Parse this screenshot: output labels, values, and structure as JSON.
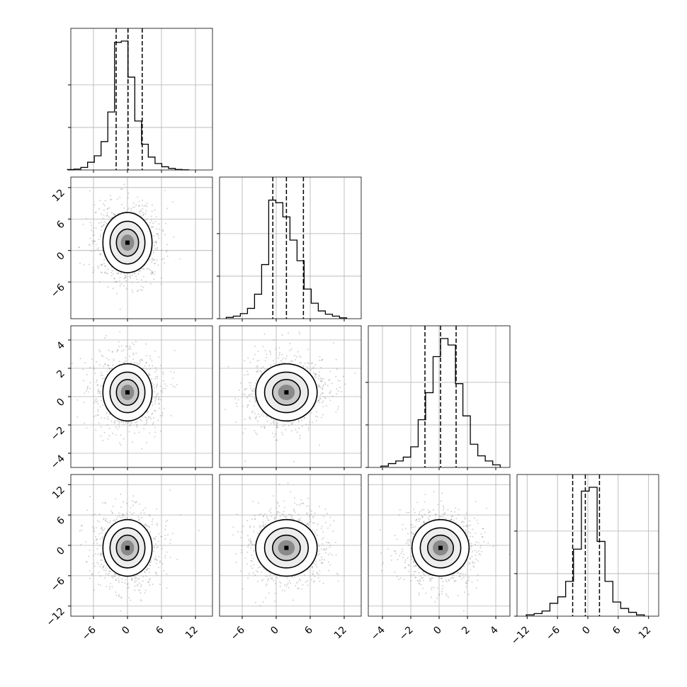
{
  "chart_data": {
    "type": "corner",
    "dimensions": 4,
    "quantile_lines": "dashed",
    "grid": true,
    "histograms": [
      {
        "index": 0,
        "xlim": [
          -10,
          15
        ],
        "counts": [
          0.003,
          0.007,
          0.02,
          0.06,
          0.11,
          0.22,
          0.45,
          0.99,
          1.0,
          0.72,
          0.38,
          0.2,
          0.1,
          0.05,
          0.025,
          0.012,
          0.004,
          0.001
        ],
        "quantiles": [
          -2.0,
          0.1,
          2.6
        ]
      },
      {
        "index": 1,
        "xlim": [
          -10,
          15
        ],
        "counts": [
          0.01,
          0.02,
          0.04,
          0.08,
          0.19,
          0.42,
          0.92,
          0.9,
          0.79,
          0.61,
          0.45,
          0.23,
          0.12,
          0.06,
          0.035,
          0.02,
          0.007
        ],
        "quantiles": [
          -0.6,
          1.8,
          4.8
        ]
      },
      {
        "index": 2,
        "xlim": [
          -5,
          5
        ],
        "counts": [
          0.01,
          0.03,
          0.05,
          0.08,
          0.16,
          0.37,
          0.58,
          0.86,
          1.0,
          0.95,
          0.65,
          0.4,
          0.18,
          0.09,
          0.05,
          0.02
        ],
        "quantiles": [
          -1.0,
          0.1,
          1.2
        ]
      },
      {
        "index": 3,
        "xlim": [
          -14,
          14
        ],
        "counts": [
          0.01,
          0.02,
          0.04,
          0.1,
          0.15,
          0.27,
          0.52,
          0.97,
          1.0,
          0.58,
          0.27,
          0.11,
          0.06,
          0.03,
          0.01
        ],
        "quantiles": [
          -3.0,
          -0.5,
          2.3
        ]
      }
    ],
    "scatter_panels": [
      {
        "row": 1,
        "col": 0,
        "xlim": [
          -10,
          15
        ],
        "ylim": [
          -13,
          14
        ],
        "mean": [
          0,
          1.5
        ],
        "sd": [
          2.8,
          3.7
        ]
      },
      {
        "row": 2,
        "col": 0,
        "xlim": [
          -10,
          15
        ],
        "ylim": [
          -5,
          5
        ],
        "mean": [
          0,
          0.3
        ],
        "sd": [
          2.8,
          1.3
        ]
      },
      {
        "row": 2,
        "col": 1,
        "xlim": [
          -10,
          15
        ],
        "ylim": [
          -5,
          5
        ],
        "mean": [
          1.8,
          0.3
        ],
        "sd": [
          3.5,
          1.3
        ]
      },
      {
        "row": 3,
        "col": 0,
        "xlim": [
          -10,
          15
        ],
        "ylim": [
          -14,
          14
        ],
        "mean": [
          0,
          -0.5
        ],
        "sd": [
          2.8,
          3.6
        ]
      },
      {
        "row": 3,
        "col": 1,
        "xlim": [
          -10,
          15
        ],
        "ylim": [
          -14,
          14
        ],
        "mean": [
          1.8,
          -0.5
        ],
        "sd": [
          3.5,
          3.6
        ]
      },
      {
        "row": 3,
        "col": 2,
        "xlim": [
          -5,
          5
        ],
        "ylim": [
          -14,
          14
        ],
        "mean": [
          0.1,
          -0.5
        ],
        "sd": [
          1.3,
          3.6
        ]
      }
    ],
    "ticks": {
      "x_var0": [
        "−6",
        "0",
        "6",
        "12"
      ],
      "x_var1": [
        "−6",
        "0",
        "6",
        "12"
      ],
      "x_var2": [
        "−4",
        "−2",
        "0",
        "2",
        "4"
      ],
      "x_var3": [
        "−12",
        "−6",
        "0",
        "6",
        "12"
      ],
      "y_var1": [
        "−6",
        "0",
        "6",
        "12"
      ],
      "y_var2": [
        "−4",
        "−2",
        "0",
        "2",
        "4"
      ],
      "y_var3": [
        "−12",
        "−6",
        "0",
        "6",
        "12"
      ]
    },
    "tick_values": {
      "x_var0": [
        -6,
        0,
        6,
        12
      ],
      "x_var1": [
        -6,
        0,
        6,
        12
      ],
      "x_var2": [
        -4,
        -2,
        0,
        2,
        4
      ],
      "x_var3": [
        -12,
        -6,
        0,
        6,
        12
      ],
      "y_var1": [
        -6,
        0,
        6,
        12
      ],
      "y_var2": [
        -4,
        -2,
        0,
        2,
        4
      ],
      "y_var3": [
        -12,
        -6,
        0,
        6,
        12
      ]
    },
    "colors": {
      "axes": "#000000",
      "grid": "#b0b0b0",
      "scatter": "#7f7f7f",
      "density_dark": "#000000",
      "density_light": "#ffffff"
    }
  }
}
